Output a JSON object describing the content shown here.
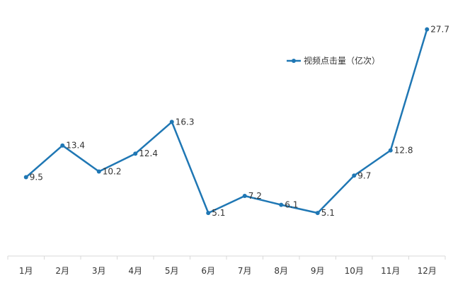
{
  "chart_data": {
    "type": "line",
    "title": "",
    "xlabel": "",
    "ylabel": "",
    "categories": [
      "1月",
      "2月",
      "3月",
      "4月",
      "5月",
      "6月",
      "7月",
      "8月",
      "9月",
      "10月",
      "11月",
      "12月"
    ],
    "series": [
      {
        "name": "视频点击量（亿次）",
        "values": [
          9.5,
          13.4,
          10.2,
          12.4,
          16.3,
          5.1,
          7.2,
          6.1,
          5.1,
          9.7,
          12.8,
          27.7
        ],
        "color": "#1f77b4"
      }
    ],
    "ylim": [
      -0.2,
      28
    ],
    "grid": false,
    "legend": "top-right",
    "data_labels": true
  }
}
